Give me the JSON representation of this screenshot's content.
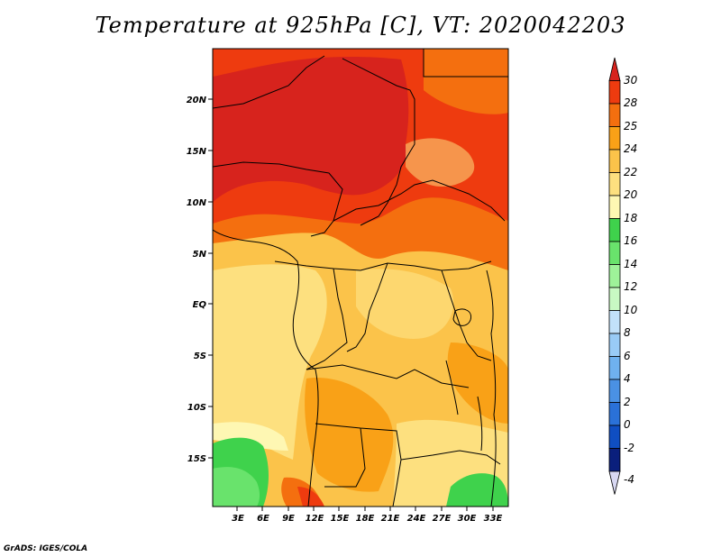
{
  "title": "Temperature at 925hPa [C], VT: 2020042203",
  "credit": "GrADS: IGES/COLA",
  "map": {
    "lat_labels": [
      "20N",
      "15N",
      "10N",
      "5N",
      "EQ",
      "5S",
      "10S",
      "15S"
    ],
    "lon_labels": [
      "3E",
      "6E",
      "9E",
      "12E",
      "15E",
      "18E",
      "21E",
      "24E",
      "27E",
      "30E",
      "33E"
    ]
  },
  "colorbar": {
    "labels": [
      "30",
      "28",
      "25",
      "24",
      "22",
      "20",
      "18",
      "16",
      "14",
      "12",
      "10",
      "8",
      "6",
      "4",
      "2",
      "0",
      "-2",
      "-4"
    ],
    "colors": [
      "#d7231d",
      "#ee3b0f",
      "#f46f0f",
      "#f9a117",
      "#fbc34a",
      "#fde07f",
      "#fef7b3",
      "#3fd24c",
      "#69e36c",
      "#9ef299",
      "#c8f9c3",
      "#c2e1fa",
      "#99cbf6",
      "#6fb1ef",
      "#4a91e4",
      "#2a71d8",
      "#0f4ec2",
      "#0a1f7c",
      "#d8d8f2"
    ]
  },
  "colors": {
    "hot": "#d7231d",
    "warm": "#f46f0f",
    "mild": "#fbc34a",
    "cool": "#fef7b3",
    "green": "#3fd24c"
  }
}
